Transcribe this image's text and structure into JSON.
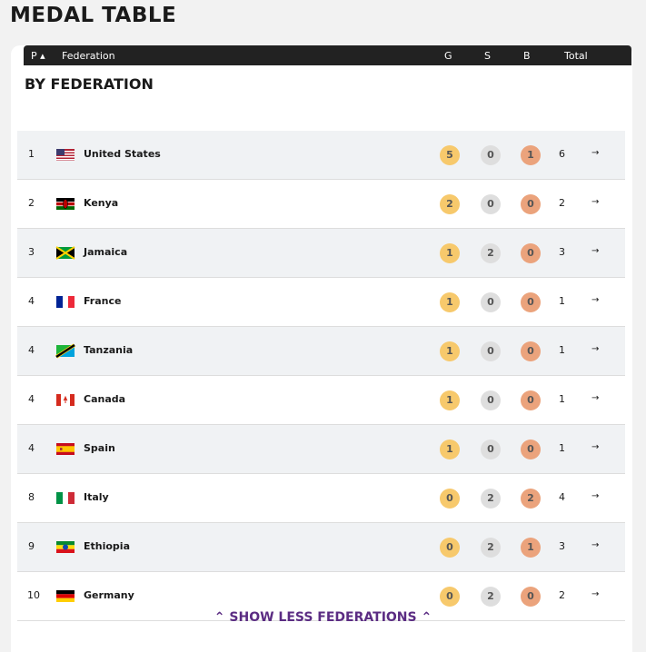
{
  "header": {
    "title": "MEDAL TABLE"
  },
  "table": {
    "columns": [
      "P",
      "Federation",
      "G",
      "S",
      "B",
      "Total"
    ],
    "subtitle": "BY FEDERATION",
    "rows": [
      {
        "rank": 1,
        "federation": "United States",
        "gold": 5,
        "silver": 0,
        "bronze": 1,
        "total": 6
      },
      {
        "rank": 2,
        "federation": "Kenya",
        "gold": 2,
        "silver": 0,
        "bronze": 0,
        "total": 2
      },
      {
        "rank": 3,
        "federation": "Jamaica",
        "gold": 1,
        "silver": 2,
        "bronze": 0,
        "total": 3
      },
      {
        "rank": 4,
        "federation": "France",
        "gold": 1,
        "silver": 0,
        "bronze": 0,
        "total": 1
      },
      {
        "rank": 4,
        "federation": "Tanzania",
        "gold": 1,
        "silver": 0,
        "bronze": 0,
        "total": 1
      },
      {
        "rank": 4,
        "federation": "Canada",
        "gold": 1,
        "silver": 0,
        "bronze": 0,
        "total": 1
      },
      {
        "rank": 4,
        "federation": "Spain",
        "gold": 1,
        "silver": 0,
        "bronze": 0,
        "total": 1
      },
      {
        "rank": 8,
        "federation": "Italy",
        "gold": 0,
        "silver": 2,
        "bronze": 2,
        "total": 4
      },
      {
        "rank": 9,
        "federation": "Ethiopia",
        "gold": 0,
        "silver": 2,
        "bronze": 1,
        "total": 3
      },
      {
        "rank": 10,
        "federation": "Germany",
        "gold": 0,
        "silver": 2,
        "bronze": 0,
        "total": 2
      }
    ],
    "footer": "SHOW LESS FEDERATIONS"
  }
}
